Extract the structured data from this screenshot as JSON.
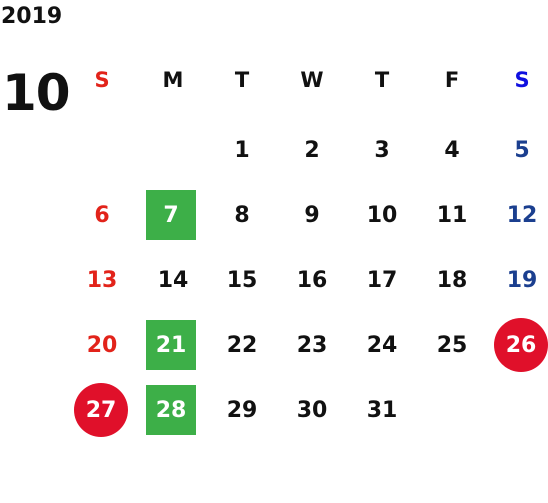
{
  "calendar": {
    "year": "2019",
    "month": "10",
    "weekdays": [
      "S",
      "M",
      "T",
      "W",
      "T",
      "F",
      "S"
    ],
    "weeks": [
      [
        "",
        "",
        "1",
        "2",
        "3",
        "4",
        "5"
      ],
      [
        "6",
        "7",
        "8",
        "9",
        "10",
        "11",
        "12"
      ],
      [
        "13",
        "14",
        "15",
        "16",
        "17",
        "18",
        "19"
      ],
      [
        "20",
        "21",
        "22",
        "23",
        "24",
        "25",
        "26"
      ],
      [
        "27",
        "28",
        "29",
        "30",
        "31",
        "",
        ""
      ]
    ]
  },
  "colors": {
    "sunday_text": "#e2231a",
    "saturday_text": "#1b3f8f",
    "saturday_header": "#1010e0",
    "highlight_green": "#3daf48",
    "highlight_red": "#e0102a",
    "default_text": "#111111"
  },
  "highlights": {
    "green_days": [
      "7",
      "21",
      "28"
    ],
    "red_circle_days": [
      "26",
      "27"
    ]
  }
}
